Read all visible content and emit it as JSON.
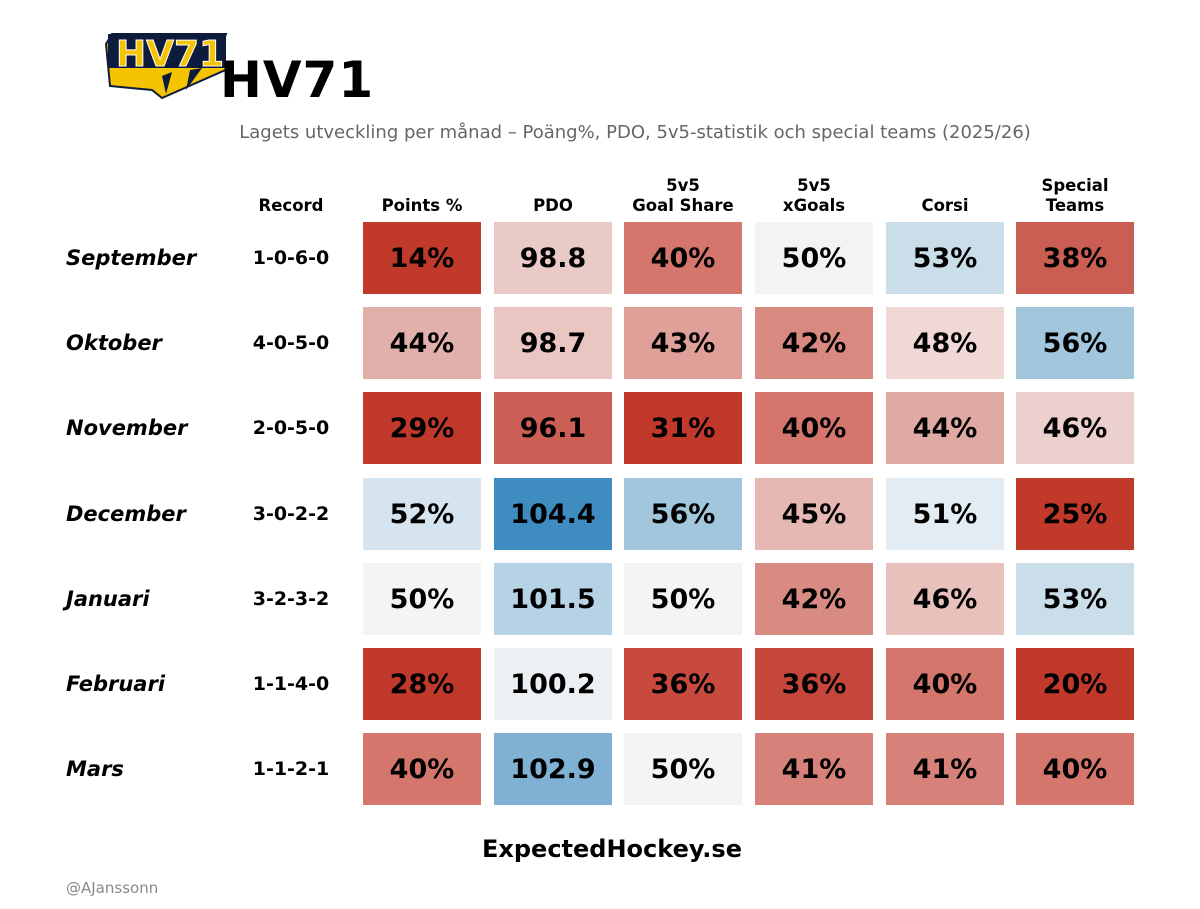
{
  "header": {
    "team": "HV71",
    "subtitle": "Lagets utveckling per månad – Poäng%, PDO, 5v5-statistik och special teams (2025/26)",
    "logo_icon": "hv71-logo-icon"
  },
  "chart_data": {
    "type": "heatmap",
    "title": "HV71",
    "subtitle": "Lagets utveckling per månad – Poäng%, PDO, 5v5-statistik och special teams (2025/26)",
    "columns": [
      "Record",
      "Points %",
      "PDO",
      "5v5\nGoal Share",
      "5v5\nxGoals",
      "Corsi",
      "Special\nTeams"
    ],
    "rows": [
      {
        "month": "September",
        "record": "1-0-6-0",
        "values": [
          "14%",
          "98.8",
          "40%",
          "50%",
          "53%",
          "38%"
        ],
        "colors": [
          "#c0392b",
          "#eacac6",
          "#d4766c",
          "#f2f3f4",
          "#cadeea",
          "#ca5e53"
        ]
      },
      {
        "month": "Oktober",
        "record": "4-0-5-0",
        "values": [
          "44%",
          "98.7",
          "43%",
          "42%",
          "48%",
          "56%"
        ],
        "colors": [
          "#e2b0ab",
          "#e9c6c2",
          "#dfa09a",
          "#d88980",
          "#f0d8d6",
          "#a2c6dc"
        ]
      },
      {
        "month": "November",
        "record": "2-0-5-0",
        "values": [
          "29%",
          "96.1",
          "31%",
          "40%",
          "44%",
          "46%"
        ],
        "colors": [
          "#c0392b",
          "#cb5f55",
          "#c0392b",
          "#d4766c",
          "#e0aaa4",
          "#ecd0cd"
        ]
      },
      {
        "month": "December",
        "record": "3-0-2-2",
        "values": [
          "52%",
          "104.4",
          "56%",
          "45%",
          "51%",
          "25%"
        ],
        "colors": [
          "#d5e4ee",
          "#3f8cc0",
          "#a2c6dc",
          "#e6b8b3",
          "#e3ecf3",
          "#c0392b"
        ]
      },
      {
        "month": "Januari",
        "record": "3-2-3-2",
        "values": [
          "50%",
          "101.5",
          "50%",
          "42%",
          "46%",
          "53%"
        ],
        "colors": [
          "#f3f4f4",
          "#b6d2e5",
          "#f3f4f4",
          "#d88b83",
          "#e8c1bd",
          "#cadeea"
        ]
      },
      {
        "month": "Februari",
        "record": "1-1-4-0",
        "values": [
          "28%",
          "100.2",
          "36%",
          "36%",
          "40%",
          "20%"
        ],
        "colors": [
          "#c0392b",
          "#ecf0f3",
          "#c84a3e",
          "#c5463a",
          "#d4766c",
          "#c0392b"
        ]
      },
      {
        "month": "Mars",
        "record": "1-1-2-1",
        "values": [
          "40%",
          "102.9",
          "50%",
          "41%",
          "41%",
          "40%"
        ],
        "colors": [
          "#d4766c",
          "#7eb1d4",
          "#f3f4f4",
          "#d6827a",
          "#d6827a",
          "#d4766c"
        ]
      }
    ]
  },
  "footer": {
    "site": "ExpectedHockey.se",
    "handle": "@AJansson​n"
  }
}
